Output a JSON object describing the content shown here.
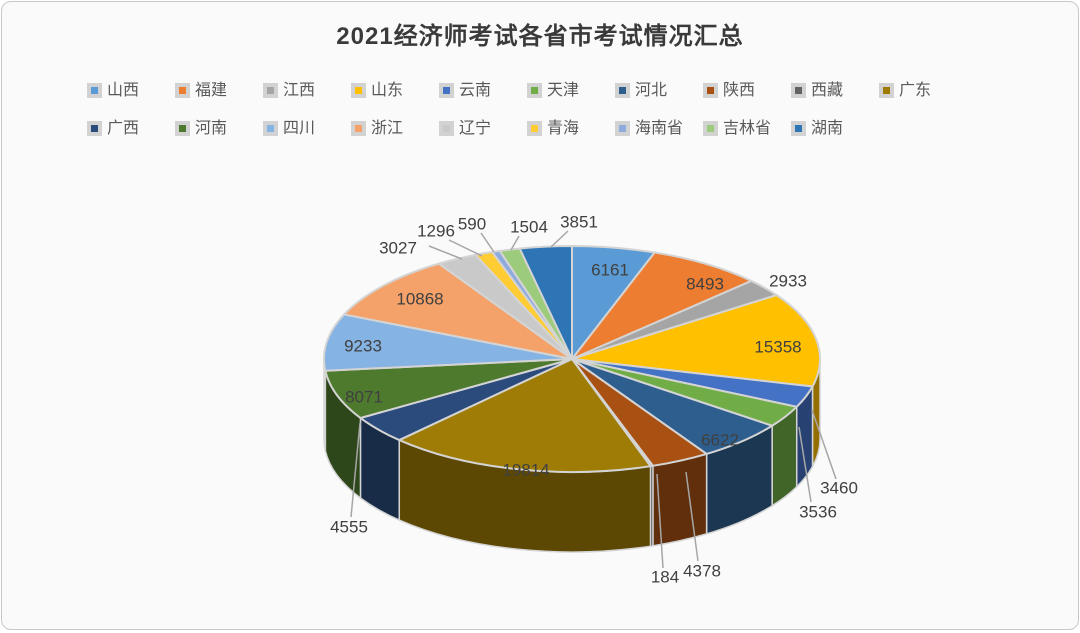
{
  "frame": {
    "background": "#fafafa",
    "border_color": "#c8c8c8"
  },
  "chart_data": {
    "type": "pie",
    "style": "3d",
    "title": "2021经济师考试各省市考试情况汇总",
    "legend_position": "top",
    "legend_rows": [
      10,
      9
    ],
    "data_labels": "value",
    "slices": [
      {
        "name": "山西",
        "value": 6161,
        "color": "#5B9BD5"
      },
      {
        "name": "福建",
        "value": 8493,
        "color": "#ED7D31"
      },
      {
        "name": "江西",
        "value": 2933,
        "color": "#A5A5A5"
      },
      {
        "name": "山东",
        "value": 15358,
        "color": "#FFC000"
      },
      {
        "name": "云南",
        "value": 3460,
        "color": "#4472C4"
      },
      {
        "name": "天津",
        "value": 3536,
        "color": "#70AD47"
      },
      {
        "name": "河北",
        "value": 6622,
        "color": "#2E5E8E"
      },
      {
        "name": "陕西",
        "value": 4378,
        "color": "#A85113"
      },
      {
        "name": "西藏",
        "value": 184,
        "color": "#636363"
      },
      {
        "name": "广东",
        "value": 19814,
        "color": "#9E7C06"
      },
      {
        "name": "广西",
        "value": 4555,
        "color": "#2A4B7C"
      },
      {
        "name": "河南",
        "value": 8071,
        "color": "#4E7A2E"
      },
      {
        "name": "四川",
        "value": 9233,
        "color": "#85B3E3"
      },
      {
        "name": "浙江",
        "value": 10868,
        "color": "#F4A269"
      },
      {
        "name": "辽宁",
        "value": 3027,
        "color": "#C9C9C9"
      },
      {
        "name": "青海",
        "value": 1296,
        "color": "#FFCD33"
      },
      {
        "name": "海南省",
        "value": 590,
        "color": "#8FAADC"
      },
      {
        "name": "吉林省",
        "value": 1504,
        "color": "#9CCB7C"
      },
      {
        "name": "湖南",
        "value": 3851,
        "color": "#2E75B6"
      }
    ]
  }
}
